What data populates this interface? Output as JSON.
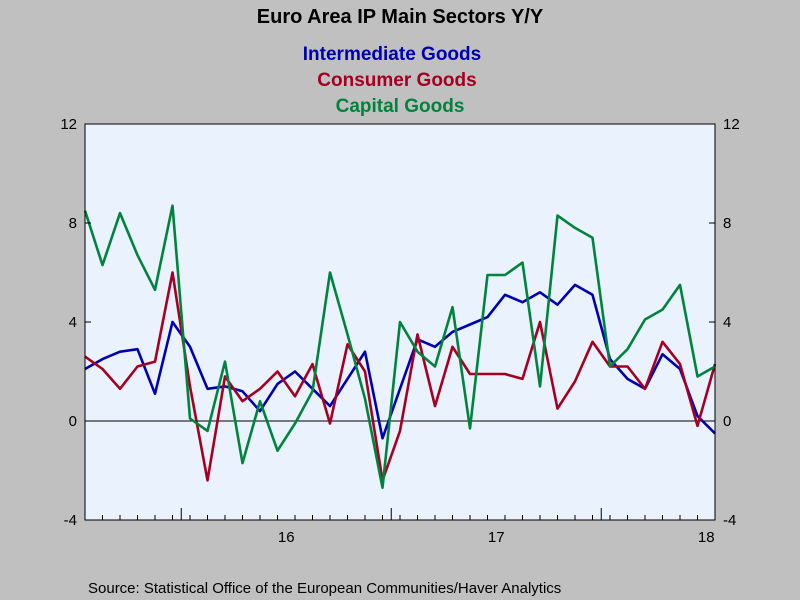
{
  "chart_data": {
    "type": "line",
    "title": "Euro Area IP Main Sectors Y/Y",
    "source": "Source:  Statistical Office of the European Communities/Haver Analytics",
    "ylim": [
      -4,
      12
    ],
    "yticks": [
      -4,
      0,
      4,
      8,
      12
    ],
    "xlim": [
      0,
      36
    ],
    "x_labels": [
      {
        "label": "16",
        "x": 11.5
      },
      {
        "label": "17",
        "x": 23.5
      },
      {
        "label": "18",
        "x": 35.5
      }
    ],
    "x_minor_ticks": [
      1,
      2,
      3,
      4,
      5,
      6,
      7,
      8,
      9,
      10,
      11,
      12,
      13,
      14,
      15,
      16,
      17,
      18,
      19,
      20,
      21,
      22,
      23,
      24,
      25,
      26,
      27,
      28,
      29,
      30,
      31,
      32,
      33,
      34,
      35,
      36
    ],
    "x_major_ticks": [
      5,
      17,
      29
    ],
    "zero_line": true,
    "plot_background": "#eaf2fd",
    "series": [
      {
        "name": "Intermediate Goods",
        "color": "#0000b3",
        "values": [
          2.1,
          2.5,
          2.8,
          2.9,
          1.1,
          4.0,
          3.0,
          1.3,
          1.4,
          1.2,
          0.4,
          1.5,
          2.0,
          1.3,
          0.6,
          1.7,
          2.8,
          -0.7,
          1.3,
          3.3,
          3.0,
          3.6,
          3.9,
          4.2,
          5.1,
          4.8,
          5.2,
          4.7,
          5.5,
          5.1,
          2.5,
          1.7,
          1.3,
          2.7,
          2.1,
          0.2,
          -0.5
        ]
      },
      {
        "name": "Consumer Goods",
        "color": "#a50021",
        "values": [
          2.6,
          2.1,
          1.3,
          2.2,
          2.4,
          6.0,
          1.4,
          -2.4,
          1.8,
          0.8,
          1.3,
          2.0,
          1.0,
          2.3,
          -0.1,
          3.1,
          2.0,
          -2.4,
          -0.4,
          3.5,
          0.6,
          3.0,
          1.9,
          1.9,
          1.9,
          1.7,
          4.0,
          0.5,
          1.6,
          3.2,
          2.2,
          2.2,
          1.3,
          3.2,
          2.3,
          -0.2,
          2.3
        ]
      },
      {
        "name": "Capital Goods",
        "color": "#00843d",
        "values": [
          8.5,
          6.3,
          8.4,
          6.7,
          5.3,
          8.7,
          0.1,
          -0.4,
          2.4,
          -1.7,
          0.8,
          -1.2,
          -0.1,
          1.2,
          6.0,
          3.5,
          0.9,
          -2.7,
          4.0,
          2.8,
          2.2,
          4.6,
          -0.3,
          5.9,
          5.9,
          6.4,
          1.4,
          8.3,
          7.8,
          7.4,
          2.2,
          2.9,
          4.1,
          4.5,
          5.5,
          1.8,
          2.2
        ]
      }
    ]
  }
}
